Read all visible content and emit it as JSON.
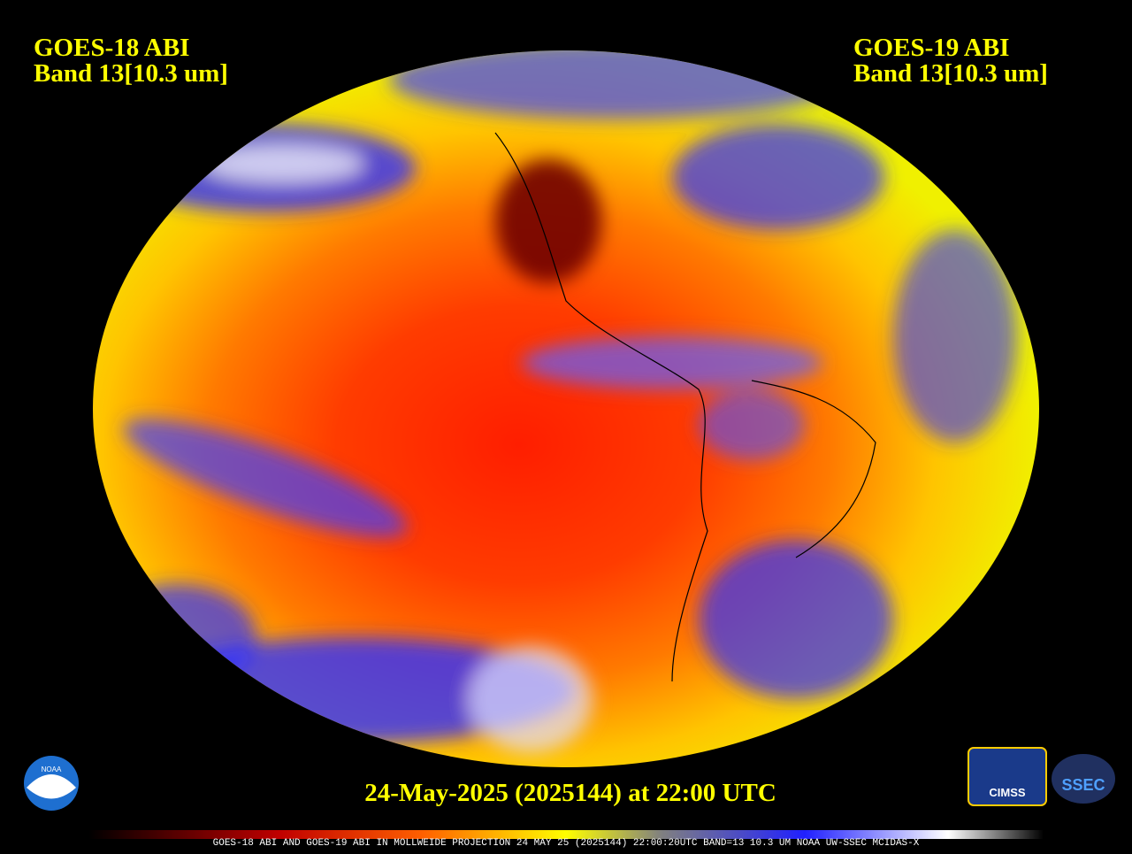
{
  "header": {
    "left": {
      "title": "GOES-18 ABI",
      "subtitle": "Band 13[10.3 um]"
    },
    "right": {
      "title": "GOES-19 ABI",
      "subtitle": "Band 13[10.3 um]"
    }
  },
  "footer": {
    "timestamp": "24-May-2025 (2025144) at 22:00 UTC",
    "caption": "GOES-18 ABI AND GOES-19 ABI IN MOLLWEIDE PROJECTION 24 MAY 25 (2025144) 22:00:20UTC BAND=13 10.3 UM NOAA UW-SSEC MCIDAS-X"
  },
  "logos": {
    "noaa": "NOAA",
    "cimss": "CIMSS",
    "ssec": "SSEC"
  }
}
